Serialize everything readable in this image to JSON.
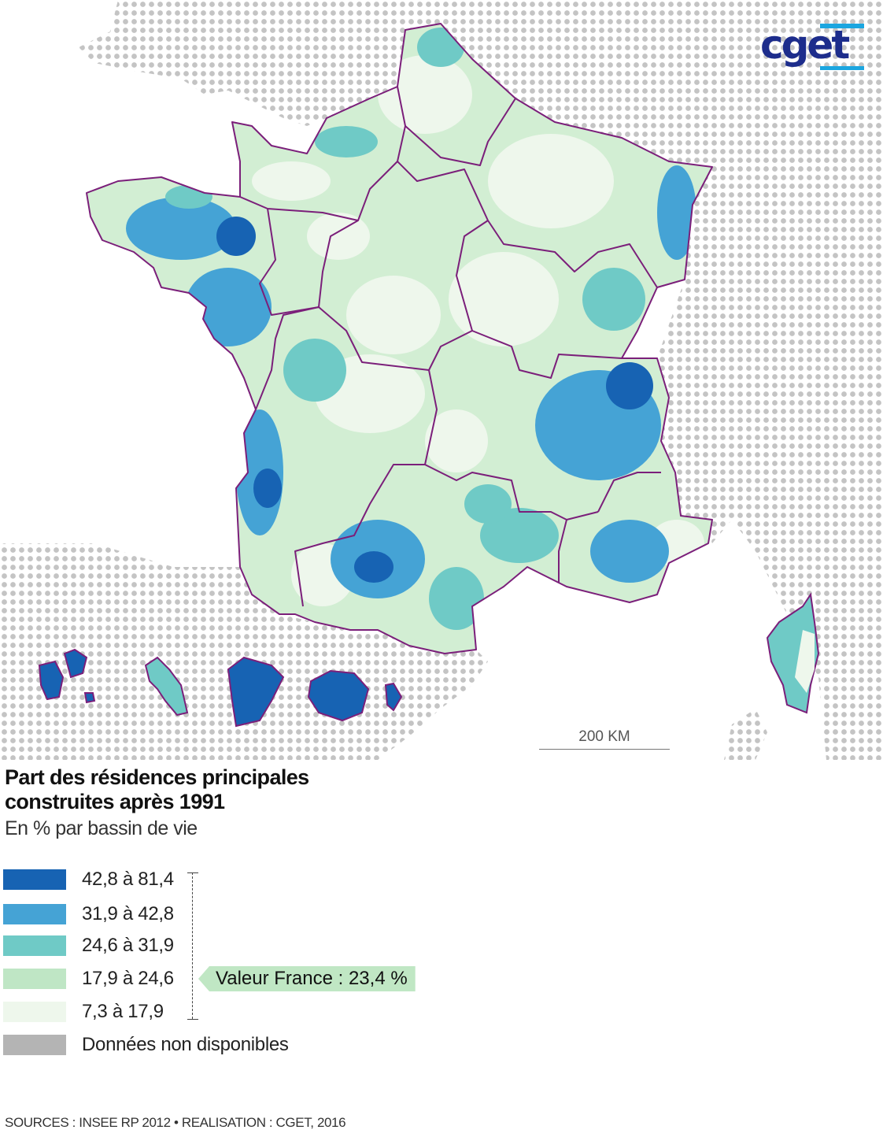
{
  "logo": {
    "text": "cget"
  },
  "scale_bar": {
    "label": "200 KM"
  },
  "title": "Part des résidences principales construites après 1991",
  "subtitle": "En % par bassin de vie",
  "legend": {
    "classes": [
      {
        "label": "42,8 à 81,4",
        "color": "#1763b3"
      },
      {
        "label": "31,9 à 42,8",
        "color": "#45a3d5"
      },
      {
        "label": "24,6 à 31,9",
        "color": "#6fcac6"
      },
      {
        "label": "17,9 à 24,6",
        "color": "#bfe6c5"
      },
      {
        "label": "7,3 à 17,9",
        "color": "#eef7ec"
      },
      {
        "label": "Données non disponibles",
        "color": "#b4b4b4"
      }
    ],
    "france_value": "Valeur France : 23,4 %"
  },
  "sources": "SOURCES : INSEE RP 2012 • REALISATION : CGET, 2016",
  "colors": {
    "region_border": "#7b1f7a",
    "no_data_dots": "#c4c4c4"
  }
}
